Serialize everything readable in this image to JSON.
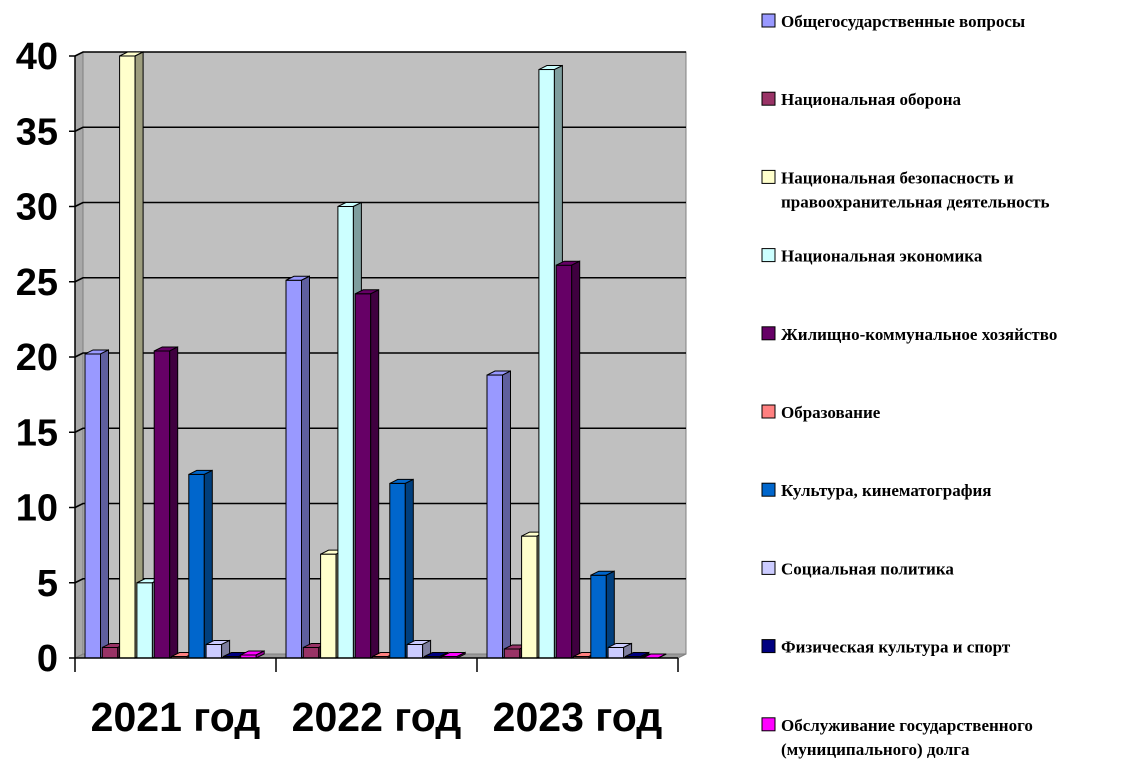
{
  "chart_data": {
    "type": "bar",
    "title": "",
    "xlabel": "",
    "ylabel": "",
    "ylim": [
      0,
      40
    ],
    "yticks": [
      "0",
      "5",
      "10",
      "15",
      "20",
      "25",
      "30",
      "35",
      "40"
    ],
    "grid": true,
    "legend_position": "right",
    "categories": [
      "2021 год",
      "2022 год",
      "2023 год"
    ],
    "series": [
      {
        "name": "Общегосударственные вопросы",
        "color": "#9999ff",
        "values": [
          20.2,
          25.1,
          18.8
        ]
      },
      {
        "name": "Национальная оборона",
        "color": "#993366",
        "values": [
          0.7,
          0.7,
          0.6
        ]
      },
      {
        "name": "Национальная безопасность и правоохранительная деятельность",
        "color": "#ffffcc",
        "values": [
          40.0,
          6.9,
          8.1
        ]
      },
      {
        "name": "Национальная экономика",
        "color": "#ccffff",
        "values": [
          5.0,
          30.0,
          39.1
        ]
      },
      {
        "name": "Жилищно-коммунальное хозяйство",
        "color": "#660066",
        "values": [
          20.4,
          24.2,
          26.1
        ]
      },
      {
        "name": "Образование",
        "color": "#ff8080",
        "values": [
          0.1,
          0.1,
          0.1
        ]
      },
      {
        "name": "Культура, кинематография",
        "color": "#0066cc",
        "values": [
          12.2,
          11.6,
          5.5
        ]
      },
      {
        "name": "Социальная политика",
        "color": "#ccccff",
        "values": [
          0.9,
          0.9,
          0.7
        ]
      },
      {
        "name": "Физическая культура и спорт",
        "color": "#000080",
        "values": [
          0.1,
          0.1,
          0.1
        ]
      },
      {
        "name": "Обслуживание государственного (муниципального) долга",
        "color": "#ff00ff",
        "values": [
          0.2,
          0.1,
          0.0
        ]
      }
    ],
    "legend_lines": [
      [
        "Общегосударственные вопросы"
      ],
      [
        "Национальная оборона"
      ],
      [
        "Национальная безопасность и",
        "правоохранительная деятельность"
      ],
      [
        "Национальная экономика"
      ],
      [
        "Жилищно-коммунальное хозяйство"
      ],
      [
        "Образование"
      ],
      [
        "Культура, кинематография"
      ],
      [
        "Социальная политика"
      ],
      [
        "Физическая культура и спорт"
      ],
      [
        "Обслуживание государственного",
        "(муниципального) долга"
      ]
    ]
  }
}
